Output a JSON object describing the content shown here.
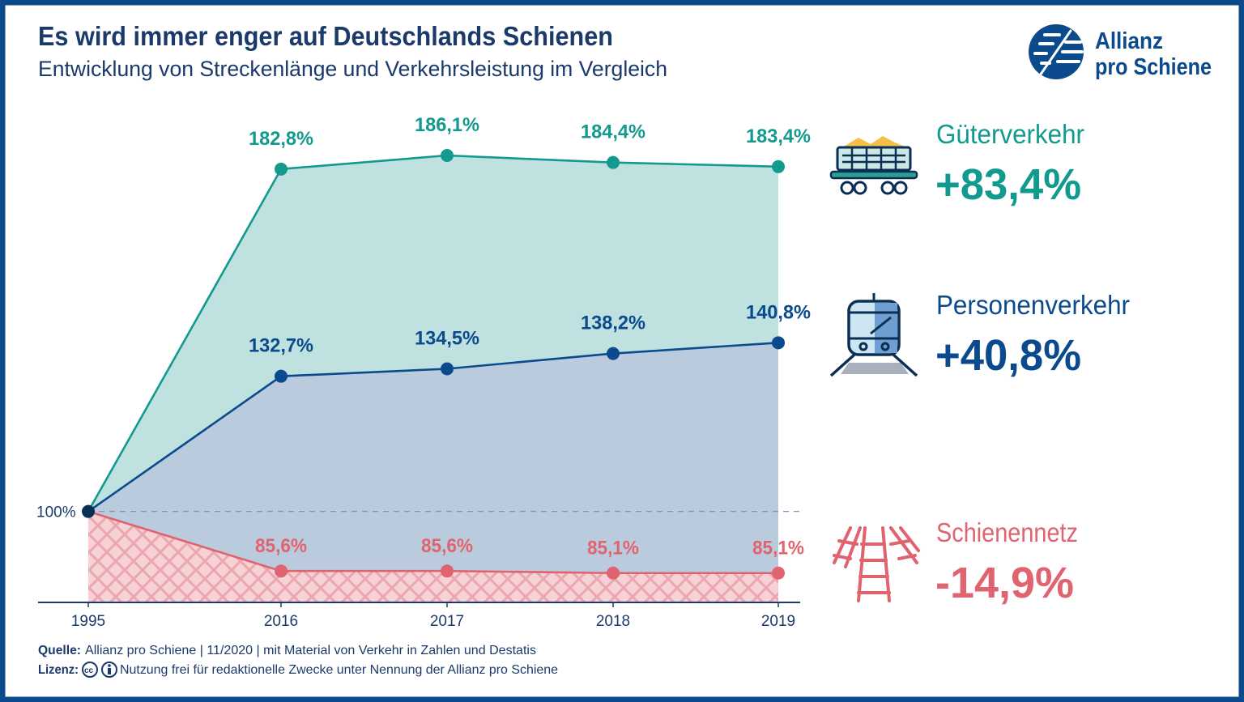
{
  "header": {
    "title": "Es wird immer enger auf Deutschlands Schienen",
    "subtitle": "Entwicklung von Streckenlänge und Verkehrsleistung im Vergleich"
  },
  "logo": {
    "line1": "Allianz",
    "line2": "pro Schiene"
  },
  "colors": {
    "frame": "#0B4A8C",
    "teal": "#129A8F",
    "navy": "#0B4A8C",
    "pink": "#E0646F",
    "text": "#1B3A6B"
  },
  "chart_data": {
    "type": "area",
    "categories": [
      "1995",
      "2016",
      "2017",
      "2018",
      "2019"
    ],
    "baseline_label": "100%",
    "ylim": [
      78,
      190
    ],
    "grid": false,
    "series": [
      {
        "name": "Güterverkehr",
        "values": [
          100,
          182.8,
          186.1,
          184.4,
          183.4
        ],
        "labels": [
          "",
          "182,8%",
          "186,1%",
          "184,4%",
          "183,4%"
        ],
        "color": "#129A8F",
        "fill": "#BFE2E0"
      },
      {
        "name": "Personenverkehr",
        "values": [
          100,
          132.7,
          134.5,
          138.2,
          140.8
        ],
        "labels": [
          "",
          "132,7%",
          "134,5%",
          "138,2%",
          "140,8%"
        ],
        "color": "#0B4A8C",
        "fill": "#BACBDD"
      },
      {
        "name": "Schienennetz",
        "values": [
          100,
          85.6,
          85.6,
          85.1,
          85.1
        ],
        "labels": [
          "",
          "85,6%",
          "85,6%",
          "85,1%",
          "85,1%"
        ],
        "color": "#E0646F",
        "fill": "#F6D2D6"
      }
    ]
  },
  "legend": [
    {
      "name": "Güterverkehr",
      "change": "+83,4%",
      "icon": "freight-wagon-icon"
    },
    {
      "name": "Personenverkehr",
      "change": "+40,8%",
      "icon": "passenger-train-icon"
    },
    {
      "name": "Schienennetz",
      "change": "-14,9%",
      "icon": "railway-tracks-icon"
    }
  ],
  "footer": {
    "source_label": "Quelle:",
    "source_text": "Allianz pro Schiene | 11/2020 | mit Material von Verkehr in Zahlen und Destatis",
    "license_label": "Lizenz:",
    "license_text": "Nutzung frei für redaktionelle Zwecke unter Nennung der Allianz pro Schiene",
    "cc_icon": "cc",
    "by_icon": "by-person-icon"
  }
}
